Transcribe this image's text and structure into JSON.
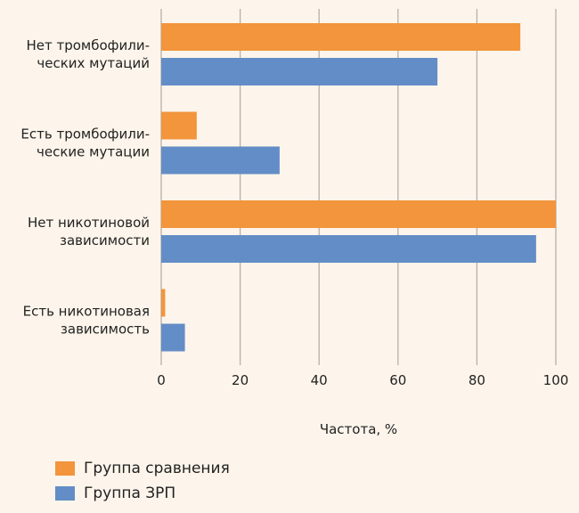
{
  "chart_data": {
    "type": "bar",
    "orientation": "horizontal",
    "categories": [
      [
        "Нет тромбофили-",
        "ческих мутаций"
      ],
      [
        "Есть тромбофили-",
        "ческие мутации"
      ],
      [
        "Нет никотиновой",
        "зависимости"
      ],
      [
        "Есть никотиновая",
        "зависимость"
      ]
    ],
    "series": [
      {
        "name": "Группа сравнения",
        "color": "#f2953c",
        "values": [
          91,
          9,
          100,
          1
        ]
      },
      {
        "name": "Группа ЗРП",
        "color": "#638dc6",
        "values": [
          70,
          30,
          95,
          6
        ]
      }
    ],
    "xlabel": "Частота, %",
    "xlim": [
      0,
      100
    ],
    "xticks": [
      0,
      20,
      40,
      60,
      80,
      100
    ],
    "grid": true,
    "legend_position": "bottom-left"
  }
}
